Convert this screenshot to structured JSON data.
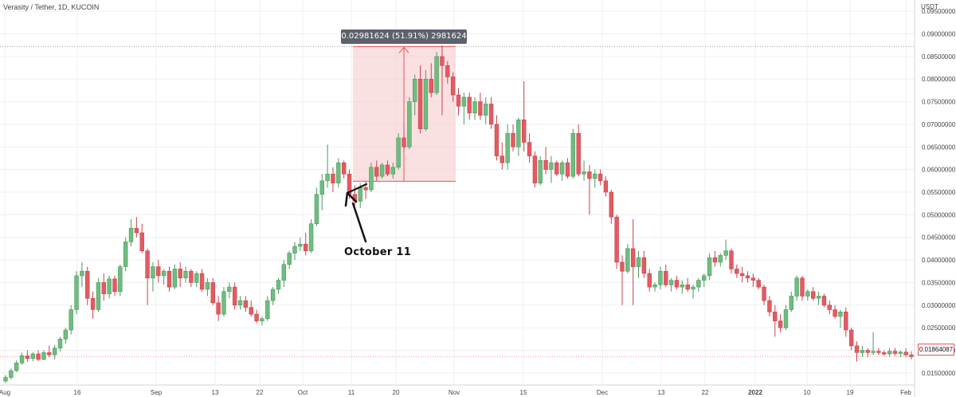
{
  "header": {
    "symbol_title": "Verasity / Tether, 1D, KUCOIN",
    "currency": "USDT"
  },
  "annotations": {
    "measure_label": "0.02981624 (51.91%) 2981624",
    "october_label": "October 11",
    "last_price": "0.01864087"
  },
  "colors": {
    "up": "#26a69a",
    "up_body": "#6fbd81",
    "down": "#ef5350",
    "down_body": "#e35b62",
    "grid": "#eef0f3",
    "axis_text": "#444444",
    "measure_fill": "#f7c6cb",
    "measure_border": "#ef5350"
  },
  "chart_data": {
    "type": "candlestick",
    "title": "Verasity / Tether, 1D, KUCOIN",
    "ylabel": "USDT",
    "ylim": [
      0.0125,
      0.0975
    ],
    "grid": true,
    "y_ticks": [
      "0.09500000",
      "0.09000000",
      "0.08500000",
      "0.08000000",
      "0.07500000",
      "0.07000000",
      "0.06500000",
      "0.06000000",
      "0.05500000",
      "0.05000000",
      "0.04500000",
      "0.04000000",
      "0.03500000",
      "0.03000000",
      "0.02500000",
      "0.02000000",
      "0.01500000"
    ],
    "x_ticks": [
      "Aug",
      "16",
      "Sep",
      "13",
      "22",
      "Oct",
      "11",
      "20",
      "Nov",
      "15",
      "Dec",
      "13",
      "22",
      "2022",
      "10",
      "19",
      "Feb"
    ],
    "measure": {
      "from": 0.0574,
      "to": 0.0872,
      "change": "0.02981624",
      "percent": "51.91%"
    },
    "last_price": 0.01864087,
    "candles": [
      {
        "o": 0.0132,
        "h": 0.0145,
        "l": 0.0128,
        "c": 0.014
      },
      {
        "o": 0.014,
        "h": 0.016,
        "l": 0.0136,
        "c": 0.0155
      },
      {
        "o": 0.0155,
        "h": 0.0178,
        "l": 0.0152,
        "c": 0.0172
      },
      {
        "o": 0.0172,
        "h": 0.0195,
        "l": 0.0168,
        "c": 0.0188
      },
      {
        "o": 0.0188,
        "h": 0.02,
        "l": 0.0175,
        "c": 0.0182
      },
      {
        "o": 0.0182,
        "h": 0.0196,
        "l": 0.0176,
        "c": 0.0192
      },
      {
        "o": 0.0192,
        "h": 0.02,
        "l": 0.0176,
        "c": 0.018
      },
      {
        "o": 0.018,
        "h": 0.02,
        "l": 0.0178,
        "c": 0.0195
      },
      {
        "o": 0.0195,
        "h": 0.021,
        "l": 0.0185,
        "c": 0.019
      },
      {
        "o": 0.019,
        "h": 0.0212,
        "l": 0.018,
        "c": 0.0205
      },
      {
        "o": 0.0205,
        "h": 0.023,
        "l": 0.0198,
        "c": 0.0225
      },
      {
        "o": 0.0225,
        "h": 0.025,
        "l": 0.0215,
        "c": 0.0245
      },
      {
        "o": 0.0245,
        "h": 0.03,
        "l": 0.0235,
        "c": 0.029
      },
      {
        "o": 0.029,
        "h": 0.0375,
        "l": 0.028,
        "c": 0.0365
      },
      {
        "o": 0.0365,
        "h": 0.0395,
        "l": 0.034,
        "c": 0.0375
      },
      {
        "o": 0.0375,
        "h": 0.0385,
        "l": 0.03,
        "c": 0.0315
      },
      {
        "o": 0.0315,
        "h": 0.033,
        "l": 0.027,
        "c": 0.029
      },
      {
        "o": 0.029,
        "h": 0.036,
        "l": 0.0285,
        "c": 0.035
      },
      {
        "o": 0.035,
        "h": 0.037,
        "l": 0.031,
        "c": 0.0325
      },
      {
        "o": 0.0325,
        "h": 0.0365,
        "l": 0.0315,
        "c": 0.0358
      },
      {
        "o": 0.0358,
        "h": 0.0365,
        "l": 0.032,
        "c": 0.033
      },
      {
        "o": 0.033,
        "h": 0.039,
        "l": 0.032,
        "c": 0.0385
      },
      {
        "o": 0.0385,
        "h": 0.045,
        "l": 0.0375,
        "c": 0.044
      },
      {
        "o": 0.044,
        "h": 0.049,
        "l": 0.043,
        "c": 0.047
      },
      {
        "o": 0.047,
        "h": 0.0495,
        "l": 0.045,
        "c": 0.046
      },
      {
        "o": 0.046,
        "h": 0.048,
        "l": 0.0415,
        "c": 0.042
      },
      {
        "o": 0.042,
        "h": 0.0425,
        "l": 0.03,
        "c": 0.036
      },
      {
        "o": 0.036,
        "h": 0.0395,
        "l": 0.033,
        "c": 0.0385
      },
      {
        "o": 0.0385,
        "h": 0.04,
        "l": 0.035,
        "c": 0.0365
      },
      {
        "o": 0.0365,
        "h": 0.038,
        "l": 0.0345,
        "c": 0.0375
      },
      {
        "o": 0.0375,
        "h": 0.0385,
        "l": 0.033,
        "c": 0.034
      },
      {
        "o": 0.034,
        "h": 0.039,
        "l": 0.0335,
        "c": 0.038
      },
      {
        "o": 0.038,
        "h": 0.0395,
        "l": 0.034,
        "c": 0.036
      },
      {
        "o": 0.036,
        "h": 0.0385,
        "l": 0.035,
        "c": 0.0375
      },
      {
        "o": 0.0375,
        "h": 0.038,
        "l": 0.034,
        "c": 0.035
      },
      {
        "o": 0.035,
        "h": 0.0375,
        "l": 0.034,
        "c": 0.037
      },
      {
        "o": 0.037,
        "h": 0.038,
        "l": 0.033,
        "c": 0.0335
      },
      {
        "o": 0.0335,
        "h": 0.036,
        "l": 0.032,
        "c": 0.035
      },
      {
        "o": 0.035,
        "h": 0.036,
        "l": 0.03,
        "c": 0.0305
      },
      {
        "o": 0.0305,
        "h": 0.032,
        "l": 0.0265,
        "c": 0.028
      },
      {
        "o": 0.028,
        "h": 0.034,
        "l": 0.0275,
        "c": 0.033
      },
      {
        "o": 0.033,
        "h": 0.035,
        "l": 0.0315,
        "c": 0.034
      },
      {
        "o": 0.034,
        "h": 0.035,
        "l": 0.029,
        "c": 0.03
      },
      {
        "o": 0.03,
        "h": 0.032,
        "l": 0.029,
        "c": 0.031
      },
      {
        "o": 0.031,
        "h": 0.032,
        "l": 0.0285,
        "c": 0.0295
      },
      {
        "o": 0.0295,
        "h": 0.031,
        "l": 0.0275,
        "c": 0.028
      },
      {
        "o": 0.028,
        "h": 0.029,
        "l": 0.026,
        "c": 0.0265
      },
      {
        "o": 0.0265,
        "h": 0.0275,
        "l": 0.0255,
        "c": 0.027
      },
      {
        "o": 0.027,
        "h": 0.032,
        "l": 0.0265,
        "c": 0.031
      },
      {
        "o": 0.031,
        "h": 0.034,
        "l": 0.03,
        "c": 0.0335
      },
      {
        "o": 0.0335,
        "h": 0.036,
        "l": 0.0325,
        "c": 0.0355
      },
      {
        "o": 0.0355,
        "h": 0.04,
        "l": 0.034,
        "c": 0.039
      },
      {
        "o": 0.039,
        "h": 0.042,
        "l": 0.038,
        "c": 0.0415
      },
      {
        "o": 0.0415,
        "h": 0.044,
        "l": 0.04,
        "c": 0.043
      },
      {
        "o": 0.043,
        "h": 0.045,
        "l": 0.042,
        "c": 0.0435
      },
      {
        "o": 0.0435,
        "h": 0.046,
        "l": 0.041,
        "c": 0.042
      },
      {
        "o": 0.042,
        "h": 0.049,
        "l": 0.0415,
        "c": 0.048
      },
      {
        "o": 0.048,
        "h": 0.056,
        "l": 0.0475,
        "c": 0.0545
      },
      {
        "o": 0.0545,
        "h": 0.059,
        "l": 0.051,
        "c": 0.0575
      },
      {
        "o": 0.0575,
        "h": 0.0655,
        "l": 0.056,
        "c": 0.059
      },
      {
        "o": 0.059,
        "h": 0.0605,
        "l": 0.055,
        "c": 0.057
      },
      {
        "o": 0.057,
        "h": 0.0625,
        "l": 0.056,
        "c": 0.0615
      },
      {
        "o": 0.0615,
        "h": 0.062,
        "l": 0.058,
        "c": 0.059
      },
      {
        "o": 0.059,
        "h": 0.06,
        "l": 0.0535,
        "c": 0.0545
      },
      {
        "o": 0.0545,
        "h": 0.0565,
        "l": 0.052,
        "c": 0.053
      },
      {
        "o": 0.053,
        "h": 0.057,
        "l": 0.0515,
        "c": 0.056
      },
      {
        "o": 0.056,
        "h": 0.0575,
        "l": 0.0535,
        "c": 0.0555
      },
      {
        "o": 0.0555,
        "h": 0.0615,
        "l": 0.055,
        "c": 0.0605
      },
      {
        "o": 0.0605,
        "h": 0.062,
        "l": 0.0575,
        "c": 0.0585
      },
      {
        "o": 0.0585,
        "h": 0.0615,
        "l": 0.058,
        "c": 0.061
      },
      {
        "o": 0.061,
        "h": 0.062,
        "l": 0.0585,
        "c": 0.059
      },
      {
        "o": 0.059,
        "h": 0.0615,
        "l": 0.058,
        "c": 0.0605
      },
      {
        "o": 0.0605,
        "h": 0.068,
        "l": 0.06,
        "c": 0.067
      },
      {
        "o": 0.067,
        "h": 0.07,
        "l": 0.064,
        "c": 0.065
      },
      {
        "o": 0.065,
        "h": 0.076,
        "l": 0.0645,
        "c": 0.075
      },
      {
        "o": 0.075,
        "h": 0.081,
        "l": 0.072,
        "c": 0.08
      },
      {
        "o": 0.08,
        "h": 0.083,
        "l": 0.068,
        "c": 0.069
      },
      {
        "o": 0.069,
        "h": 0.082,
        "l": 0.0685,
        "c": 0.08
      },
      {
        "o": 0.08,
        "h": 0.0835,
        "l": 0.076,
        "c": 0.077
      },
      {
        "o": 0.077,
        "h": 0.086,
        "l": 0.0765,
        "c": 0.085
      },
      {
        "o": 0.085,
        "h": 0.0875,
        "l": 0.072,
        "c": 0.083
      },
      {
        "o": 0.083,
        "h": 0.084,
        "l": 0.079,
        "c": 0.0805
      },
      {
        "o": 0.0805,
        "h": 0.0815,
        "l": 0.075,
        "c": 0.0765
      },
      {
        "o": 0.0765,
        "h": 0.078,
        "l": 0.072,
        "c": 0.074
      },
      {
        "o": 0.074,
        "h": 0.077,
        "l": 0.07,
        "c": 0.076
      },
      {
        "o": 0.076,
        "h": 0.077,
        "l": 0.071,
        "c": 0.0725
      },
      {
        "o": 0.0725,
        "h": 0.076,
        "l": 0.071,
        "c": 0.075
      },
      {
        "o": 0.075,
        "h": 0.077,
        "l": 0.071,
        "c": 0.072
      },
      {
        "o": 0.072,
        "h": 0.076,
        "l": 0.07,
        "c": 0.0745
      },
      {
        "o": 0.0745,
        "h": 0.076,
        "l": 0.069,
        "c": 0.07
      },
      {
        "o": 0.07,
        "h": 0.072,
        "l": 0.062,
        "c": 0.063
      },
      {
        "o": 0.063,
        "h": 0.066,
        "l": 0.06,
        "c": 0.0615
      },
      {
        "o": 0.0615,
        "h": 0.07,
        "l": 0.06,
        "c": 0.068
      },
      {
        "o": 0.068,
        "h": 0.07,
        "l": 0.064,
        "c": 0.065
      },
      {
        "o": 0.065,
        "h": 0.0715,
        "l": 0.063,
        "c": 0.071
      },
      {
        "o": 0.071,
        "h": 0.0795,
        "l": 0.064,
        "c": 0.066
      },
      {
        "o": 0.066,
        "h": 0.068,
        "l": 0.0615,
        "c": 0.063
      },
      {
        "o": 0.063,
        "h": 0.064,
        "l": 0.056,
        "c": 0.057
      },
      {
        "o": 0.057,
        "h": 0.063,
        "l": 0.0565,
        "c": 0.062
      },
      {
        "o": 0.062,
        "h": 0.065,
        "l": 0.059,
        "c": 0.06
      },
      {
        "o": 0.06,
        "h": 0.063,
        "l": 0.057,
        "c": 0.0615
      },
      {
        "o": 0.0615,
        "h": 0.062,
        "l": 0.0585,
        "c": 0.059
      },
      {
        "o": 0.059,
        "h": 0.062,
        "l": 0.0575,
        "c": 0.0615
      },
      {
        "o": 0.0615,
        "h": 0.0625,
        "l": 0.058,
        "c": 0.0585
      },
      {
        "o": 0.0585,
        "h": 0.069,
        "l": 0.058,
        "c": 0.068
      },
      {
        "o": 0.068,
        "h": 0.07,
        "l": 0.0585,
        "c": 0.059
      },
      {
        "o": 0.059,
        "h": 0.062,
        "l": 0.0575,
        "c": 0.0595
      },
      {
        "o": 0.0595,
        "h": 0.061,
        "l": 0.05,
        "c": 0.058
      },
      {
        "o": 0.058,
        "h": 0.06,
        "l": 0.056,
        "c": 0.059
      },
      {
        "o": 0.059,
        "h": 0.06,
        "l": 0.0565,
        "c": 0.0575
      },
      {
        "o": 0.0575,
        "h": 0.0585,
        "l": 0.054,
        "c": 0.055
      },
      {
        "o": 0.055,
        "h": 0.0555,
        "l": 0.048,
        "c": 0.0495
      },
      {
        "o": 0.0495,
        "h": 0.05,
        "l": 0.038,
        "c": 0.0395
      },
      {
        "o": 0.0395,
        "h": 0.041,
        "l": 0.03,
        "c": 0.0375
      },
      {
        "o": 0.0375,
        "h": 0.0435,
        "l": 0.037,
        "c": 0.0425
      },
      {
        "o": 0.0425,
        "h": 0.049,
        "l": 0.03,
        "c": 0.0385
      },
      {
        "o": 0.0385,
        "h": 0.042,
        "l": 0.036,
        "c": 0.0405
      },
      {
        "o": 0.0405,
        "h": 0.042,
        "l": 0.036,
        "c": 0.037
      },
      {
        "o": 0.037,
        "h": 0.038,
        "l": 0.033,
        "c": 0.034
      },
      {
        "o": 0.034,
        "h": 0.035,
        "l": 0.033,
        "c": 0.0345
      },
      {
        "o": 0.0345,
        "h": 0.0385,
        "l": 0.0335,
        "c": 0.0375
      },
      {
        "o": 0.0375,
        "h": 0.039,
        "l": 0.034,
        "c": 0.0345
      },
      {
        "o": 0.0345,
        "h": 0.036,
        "l": 0.033,
        "c": 0.0355
      },
      {
        "o": 0.0355,
        "h": 0.0365,
        "l": 0.0335,
        "c": 0.034
      },
      {
        "o": 0.034,
        "h": 0.0355,
        "l": 0.0325,
        "c": 0.0345
      },
      {
        "o": 0.0345,
        "h": 0.036,
        "l": 0.033,
        "c": 0.0335
      },
      {
        "o": 0.0335,
        "h": 0.0345,
        "l": 0.0315,
        "c": 0.034
      },
      {
        "o": 0.034,
        "h": 0.036,
        "l": 0.033,
        "c": 0.0355
      },
      {
        "o": 0.0355,
        "h": 0.037,
        "l": 0.034,
        "c": 0.0365
      },
      {
        "o": 0.0365,
        "h": 0.0415,
        "l": 0.0355,
        "c": 0.0405
      },
      {
        "o": 0.0405,
        "h": 0.042,
        "l": 0.0385,
        "c": 0.0395
      },
      {
        "o": 0.0395,
        "h": 0.0415,
        "l": 0.0385,
        "c": 0.041
      },
      {
        "o": 0.041,
        "h": 0.0445,
        "l": 0.04,
        "c": 0.042
      },
      {
        "o": 0.042,
        "h": 0.0425,
        "l": 0.037,
        "c": 0.038
      },
      {
        "o": 0.038,
        "h": 0.039,
        "l": 0.036,
        "c": 0.037
      },
      {
        "o": 0.037,
        "h": 0.0385,
        "l": 0.035,
        "c": 0.0365
      },
      {
        "o": 0.0365,
        "h": 0.0375,
        "l": 0.035,
        "c": 0.036
      },
      {
        "o": 0.036,
        "h": 0.037,
        "l": 0.034,
        "c": 0.0355
      },
      {
        "o": 0.0355,
        "h": 0.036,
        "l": 0.0335,
        "c": 0.034
      },
      {
        "o": 0.034,
        "h": 0.0345,
        "l": 0.03,
        "c": 0.031
      },
      {
        "o": 0.031,
        "h": 0.032,
        "l": 0.0275,
        "c": 0.0285
      },
      {
        "o": 0.0285,
        "h": 0.03,
        "l": 0.023,
        "c": 0.0265
      },
      {
        "o": 0.0265,
        "h": 0.028,
        "l": 0.024,
        "c": 0.025
      },
      {
        "o": 0.025,
        "h": 0.03,
        "l": 0.0245,
        "c": 0.029
      },
      {
        "o": 0.029,
        "h": 0.033,
        "l": 0.0285,
        "c": 0.032
      },
      {
        "o": 0.032,
        "h": 0.0365,
        "l": 0.031,
        "c": 0.036
      },
      {
        "o": 0.036,
        "h": 0.0365,
        "l": 0.031,
        "c": 0.032
      },
      {
        "o": 0.032,
        "h": 0.0335,
        "l": 0.031,
        "c": 0.033
      },
      {
        "o": 0.033,
        "h": 0.034,
        "l": 0.031,
        "c": 0.0315
      },
      {
        "o": 0.0315,
        "h": 0.033,
        "l": 0.03,
        "c": 0.032
      },
      {
        "o": 0.032,
        "h": 0.0325,
        "l": 0.0295,
        "c": 0.03
      },
      {
        "o": 0.03,
        "h": 0.031,
        "l": 0.028,
        "c": 0.029
      },
      {
        "o": 0.029,
        "h": 0.03,
        "l": 0.027,
        "c": 0.0275
      },
      {
        "o": 0.0275,
        "h": 0.029,
        "l": 0.025,
        "c": 0.0285
      },
      {
        "o": 0.0285,
        "h": 0.0295,
        "l": 0.023,
        "c": 0.0245
      },
      {
        "o": 0.0245,
        "h": 0.025,
        "l": 0.02,
        "c": 0.021
      },
      {
        "o": 0.021,
        "h": 0.022,
        "l": 0.0175,
        "c": 0.0195
      },
      {
        "o": 0.0195,
        "h": 0.021,
        "l": 0.0185,
        "c": 0.02
      },
      {
        "o": 0.02,
        "h": 0.0205,
        "l": 0.0185,
        "c": 0.0195
      },
      {
        "o": 0.0195,
        "h": 0.024,
        "l": 0.019,
        "c": 0.0198
      },
      {
        "o": 0.0198,
        "h": 0.0205,
        "l": 0.019,
        "c": 0.0195
      },
      {
        "o": 0.0195,
        "h": 0.02,
        "l": 0.0188,
        "c": 0.0192
      },
      {
        "o": 0.0192,
        "h": 0.0205,
        "l": 0.0185,
        "c": 0.0198
      },
      {
        "o": 0.0198,
        "h": 0.0205,
        "l": 0.0188,
        "c": 0.0193
      },
      {
        "o": 0.0193,
        "h": 0.02,
        "l": 0.0185,
        "c": 0.0196
      },
      {
        "o": 0.0196,
        "h": 0.0205,
        "l": 0.0185,
        "c": 0.019
      },
      {
        "o": 0.019,
        "h": 0.0198,
        "l": 0.018,
        "c": 0.0186
      }
    ]
  }
}
